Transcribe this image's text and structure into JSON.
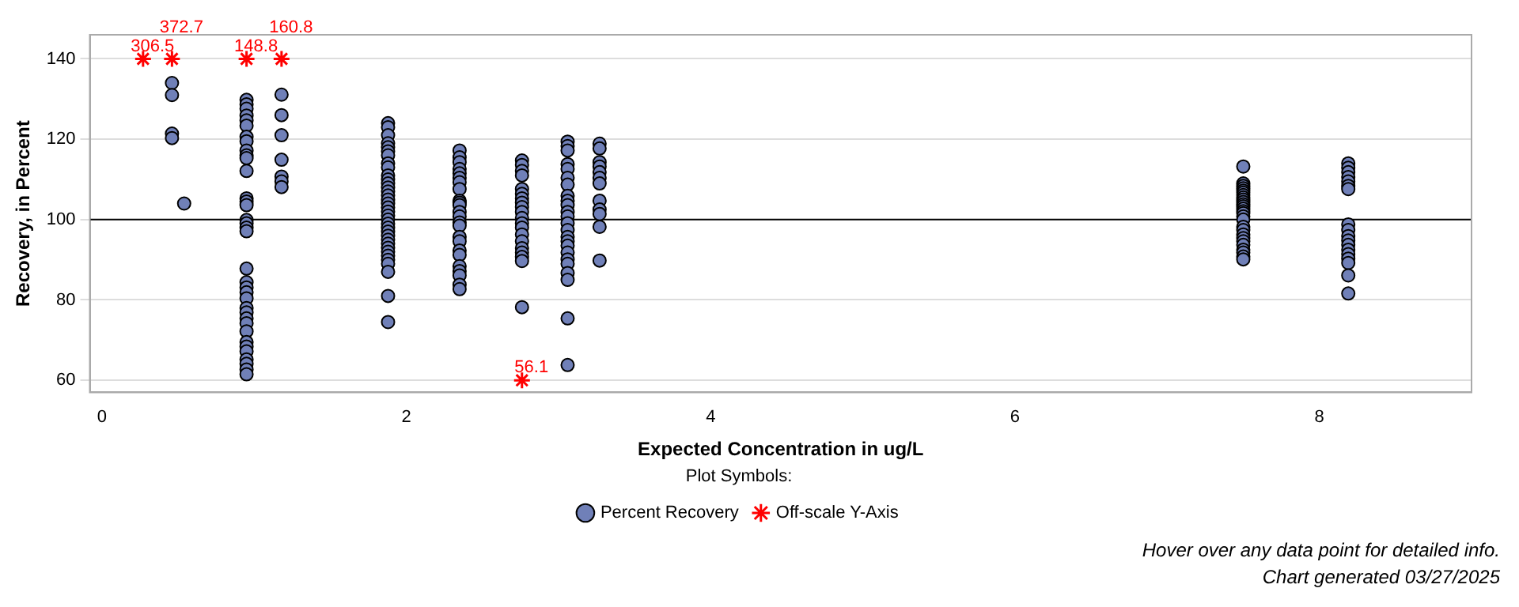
{
  "chart_data": {
    "type": "scatter",
    "xlabel": "Expected Concentration in ug/L",
    "ylabel": "Recovery, in Percent",
    "legend_title": "Plot Symbols:",
    "legend": "bottom",
    "grid": "y",
    "xlim": [
      -0.08,
      9
    ],
    "xticks": [
      0,
      2,
      4,
      6,
      8
    ],
    "ylim": [
      57,
      146
    ],
    "yticks": [
      60,
      80,
      100,
      120,
      140
    ],
    "ref_lines": [
      {
        "axis": "y",
        "value": 100,
        "color": "#000000"
      }
    ],
    "series": [
      {
        "name": "Percent Recovery",
        "color": "#7080b8",
        "marker": "circle",
        "x": [
          0.46,
          0.46,
          0.46,
          0.46,
          0.54,
          0.95,
          0.95,
          0.95,
          0.95,
          0.95,
          0.95,
          0.95,
          0.95,
          0.95,
          0.95,
          0.95,
          0.95,
          0.95,
          0.95,
          0.95,
          0.95,
          0.95,
          0.95,
          0.95,
          0.95,
          0.95,
          0.95,
          0.95,
          0.95,
          0.95,
          0.95,
          0.95,
          0.95,
          0.95,
          0.95,
          0.95,
          0.95,
          0.95,
          0.95,
          0.95,
          0.95,
          1.18,
          1.18,
          1.18,
          1.18,
          1.18,
          1.18,
          1.18,
          1.88,
          1.88,
          1.88,
          1.88,
          1.88,
          1.88,
          1.88,
          1.88,
          1.88,
          1.88,
          1.88,
          1.88,
          1.88,
          1.88,
          1.88,
          1.88,
          1.88,
          1.88,
          1.88,
          1.88,
          1.88,
          1.88,
          1.88,
          1.88,
          1.88,
          1.88,
          1.88,
          1.88,
          1.88,
          1.88,
          1.88,
          1.88,
          1.88,
          1.88,
          1.88,
          2.35,
          2.35,
          2.35,
          2.35,
          2.35,
          2.35,
          2.35,
          2.35,
          2.35,
          2.35,
          2.35,
          2.35,
          2.35,
          2.35,
          2.35,
          2.35,
          2.35,
          2.35,
          2.35,
          2.35,
          2.35,
          2.35,
          2.35,
          2.35,
          2.76,
          2.76,
          2.76,
          2.76,
          2.76,
          2.76,
          2.76,
          2.76,
          2.76,
          2.76,
          2.76,
          2.76,
          2.76,
          2.76,
          2.76,
          2.76,
          2.76,
          2.76,
          2.76,
          2.76,
          3.06,
          3.06,
          3.06,
          3.06,
          3.06,
          3.06,
          3.06,
          3.06,
          3.06,
          3.06,
          3.06,
          3.06,
          3.06,
          3.06,
          3.06,
          3.06,
          3.06,
          3.06,
          3.06,
          3.06,
          3.06,
          3.06,
          3.06,
          3.06,
          3.27,
          3.27,
          3.27,
          3.27,
          3.27,
          3.27,
          3.27,
          3.27,
          3.27,
          3.27,
          3.27,
          3.27,
          7.5,
          7.5,
          7.5,
          7.5,
          7.5,
          7.5,
          7.5,
          7.5,
          7.5,
          7.5,
          7.5,
          7.5,
          7.5,
          7.5,
          7.5,
          7.5,
          7.5,
          7.5,
          7.5,
          7.5,
          7.5,
          7.5,
          7.5,
          7.5,
          7.5,
          7.5,
          7.5,
          8.19,
          8.19,
          8.19,
          8.19,
          8.19,
          8.19,
          8.19,
          8.19,
          8.19,
          8.19,
          8.19,
          8.19,
          8.19,
          8.19,
          8.19,
          8.19,
          8.19,
          8.19
        ],
        "values": [
          134,
          131,
          121.4,
          120.3,
          104,
          129.8,
          128.7,
          127.6,
          125.9,
          124.7,
          123.4,
          120.6,
          119.5,
          117.2,
          116,
          115.3,
          112.1,
          105.3,
          104.5,
          103.6,
          99.9,
          99.1,
          98,
          97.1,
          87.8,
          84.4,
          83.1,
          81.9,
          80.4,
          78,
          76.9,
          75.4,
          74.2,
          72.2,
          69.5,
          68.4,
          67.2,
          65.2,
          64.1,
          62.7,
          61.5,
          131.1,
          126,
          121,
          114.9,
          110.7,
          109.5,
          108.1,
          124,
          123,
          121,
          119,
          118,
          117,
          116,
          114,
          113,
          111,
          110,
          109,
          108,
          107,
          106,
          105,
          104,
          103,
          102,
          101,
          100,
          99,
          98,
          97,
          96,
          95,
          94,
          93,
          92,
          91,
          90,
          89,
          87,
          81,
          74.5,
          117.2,
          115.5,
          114.3,
          112.6,
          111.5,
          110.4,
          109.3,
          107.6,
          104.7,
          104.2,
          103.6,
          101.9,
          100.8,
          99.3,
          98.5,
          95.7,
          94.6,
          92.3,
          91.2,
          88.4,
          87.2,
          86.1,
          83.8,
          82.7,
          114.7,
          113.6,
          112.1,
          111,
          107.6,
          106.4,
          105.3,
          104.2,
          103.1,
          101.9,
          100.4,
          99.1,
          98,
          96.3,
          94.6,
          92.9,
          91.8,
          90.7,
          89.7,
          78.2,
          119.4,
          118.3,
          117.2,
          113.8,
          112.6,
          110.4,
          108.7,
          105.9,
          104.7,
          103.6,
          101.9,
          100.8,
          99.1,
          97.4,
          95.7,
          94.6,
          93.5,
          91.8,
          90.1,
          89,
          86.7,
          85,
          75.4,
          63.8,
          118.9,
          117.7,
          114.3,
          113.2,
          111.8,
          110.4,
          109,
          104.7,
          102.5,
          101.4,
          98.2,
          89.8,
          113.2,
          109,
          108.4,
          107.8,
          107.2,
          106.7,
          106.1,
          105.5,
          105,
          104.4,
          103.8,
          103.3,
          102.7,
          102.1,
          101.6,
          100.8,
          100,
          98.2,
          97.4,
          96.3,
          95.4,
          94.6,
          93.7,
          92.5,
          91.8,
          90.8,
          90.1,
          114,
          112.9,
          111.8,
          110.6,
          109.5,
          108.4,
          107.6,
          98.8,
          97.4,
          95.9,
          94.8,
          93.7,
          92.5,
          91.4,
          90.3,
          89.2,
          86.1,
          81.6
        ]
      },
      {
        "name": "Off-scale Y-Axis",
        "color": "#ff0000",
        "marker": "cross",
        "x": [
          0.27,
          0.46,
          0.95,
          1.18,
          2.76
        ],
        "values": [
          140,
          140,
          140,
          140,
          60
        ]
      }
    ],
    "annotations": [
      {
        "text": "306.5",
        "x": 0.27,
        "y": 140
      },
      {
        "text": "372.7",
        "x": 0.46,
        "y": 140
      },
      {
        "text": "148.8",
        "x": 0.95,
        "y": 140
      },
      {
        "text": "160.8",
        "x": 1.18,
        "y": 140
      },
      {
        "text": "56.1",
        "x": 2.76,
        "y": 60
      },
      "Hover over any data point for detailed info.",
      "Chart generated 03/27/2025"
    ]
  }
}
